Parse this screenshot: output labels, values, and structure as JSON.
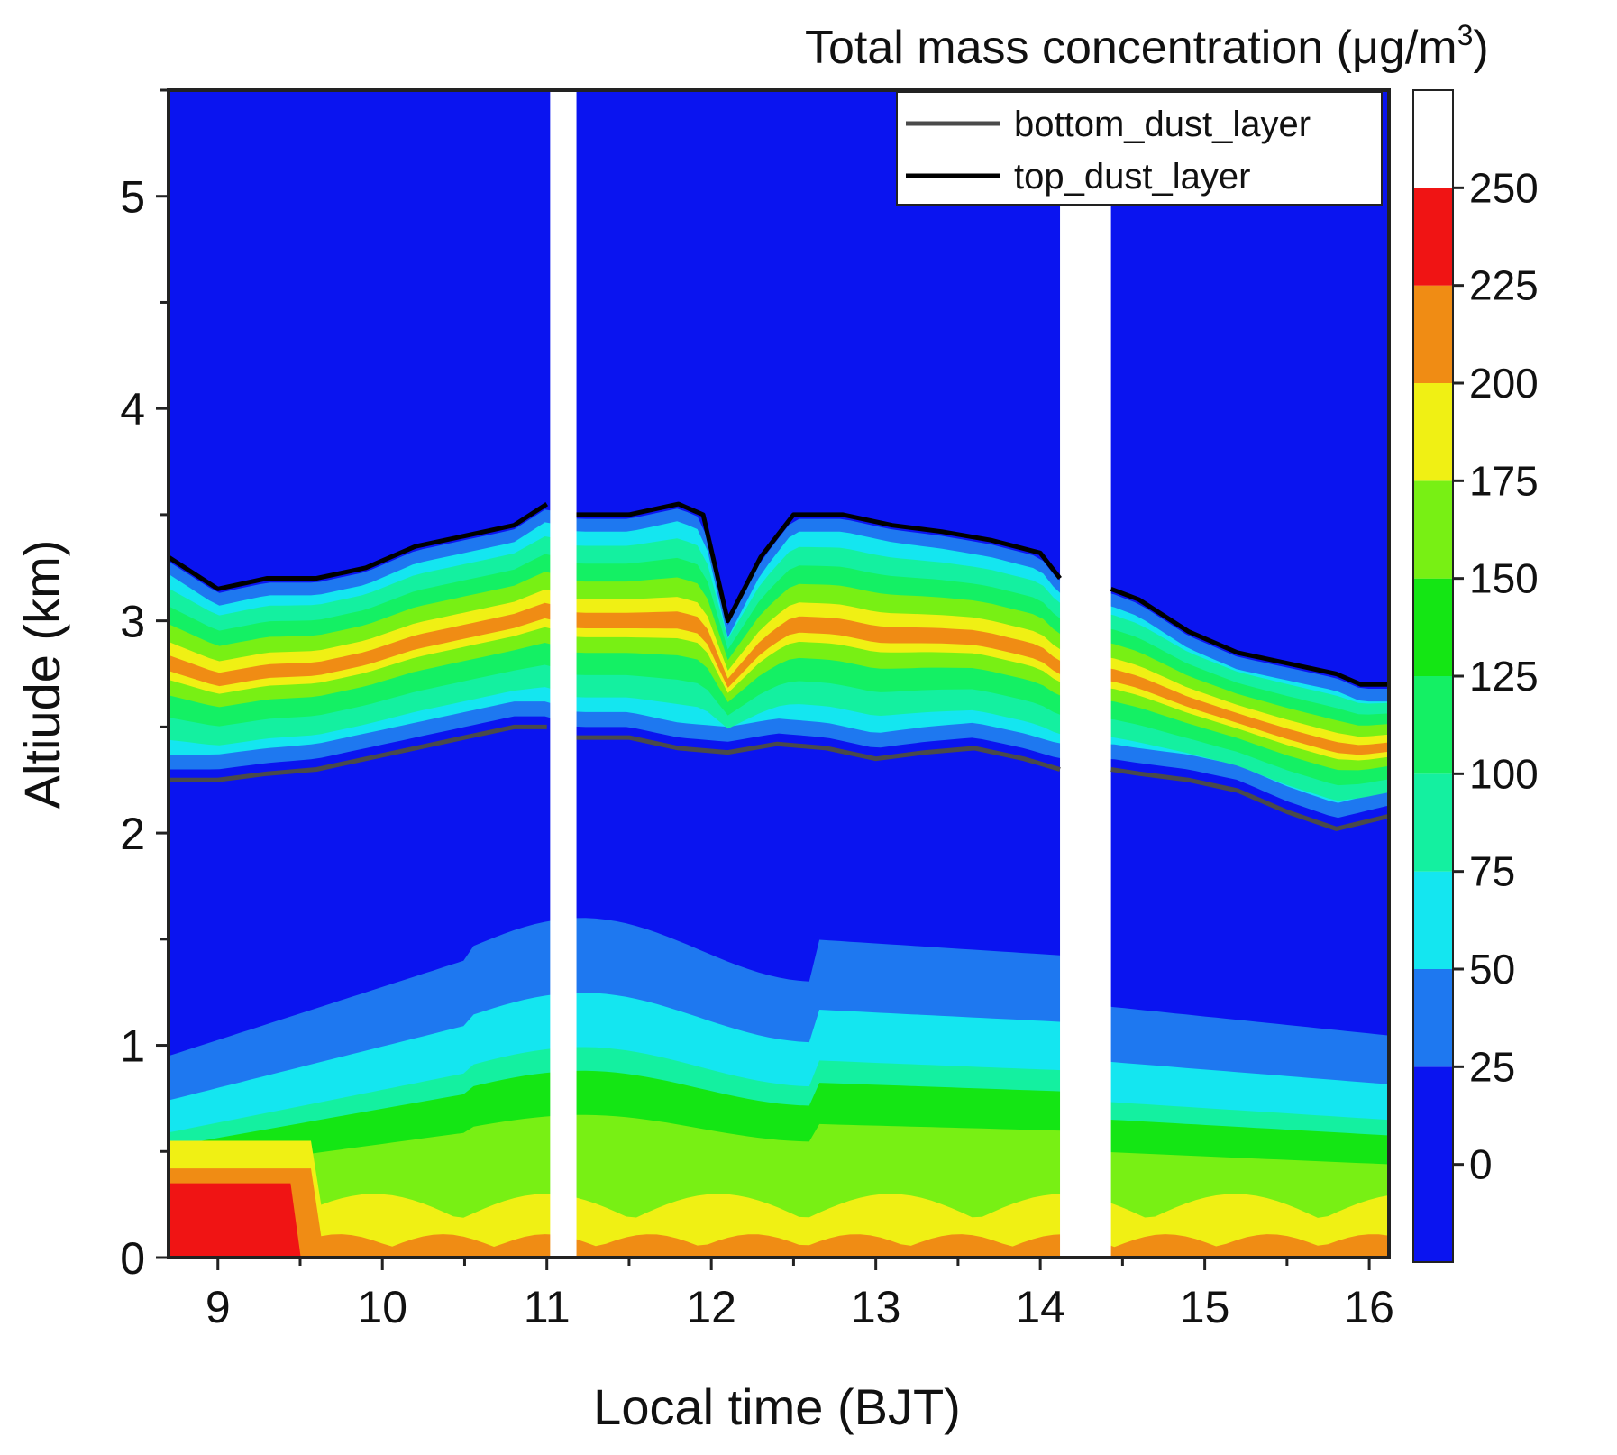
{
  "chart_data": {
    "type": "heatmap",
    "title": "Total mass concentration (μg/m",
    "title_superscript": "3",
    "title_close": ")",
    "xlabel": "Local time (BJT)",
    "ylabel": "Altiude (km)",
    "xlim": [
      8.7,
      16.12
    ],
    "ylim": [
      0,
      5.5
    ],
    "x_ticks": [
      9,
      10,
      11,
      12,
      13,
      14,
      15,
      16
    ],
    "x_tick_labels": [
      "9",
      "10",
      "11",
      "12",
      "13",
      "14",
      "15",
      "16"
    ],
    "y_ticks": [
      0,
      1,
      2,
      3,
      4,
      5
    ],
    "y_tick_labels": [
      "0",
      "1",
      "2",
      "3",
      "4",
      "5"
    ],
    "no_data_gaps": [
      [
        11.02,
        11.18
      ],
      [
        14.12,
        14.43
      ]
    ],
    "colorbar": {
      "levels": [
        0,
        25,
        50,
        75,
        100,
        125,
        150,
        175,
        200,
        225,
        250
      ],
      "labels": [
        "0",
        "25",
        "50",
        "75",
        "100",
        "125",
        "150",
        "175",
        "200",
        "225",
        "250"
      ],
      "colors": [
        "#0a14f0",
        "#1e78f0",
        "#14e6f0",
        "#14f0a0",
        "#14f064",
        "#14e614",
        "#78f014",
        "#f0f014",
        "#f08c14",
        "#f01414",
        "#ffffff"
      ]
    },
    "series": [
      {
        "name": "bottom_dust_layer",
        "color": "#4a4a4a",
        "x": [
          8.7,
          9.0,
          9.3,
          9.6,
          9.9,
          10.2,
          10.5,
          10.8,
          11.0,
          11.18,
          11.5,
          11.8,
          12.1,
          12.4,
          12.7,
          13.0,
          13.3,
          13.6,
          13.9,
          14.12,
          14.43,
          14.6,
          14.9,
          15.2,
          15.5,
          15.8,
          16.12
        ],
        "y": [
          2.25,
          2.25,
          2.28,
          2.3,
          2.35,
          2.4,
          2.45,
          2.5,
          2.5,
          2.45,
          2.45,
          2.4,
          2.38,
          2.42,
          2.4,
          2.35,
          2.38,
          2.4,
          2.35,
          2.3,
          2.3,
          2.28,
          2.25,
          2.2,
          2.1,
          2.02,
          2.08
        ]
      },
      {
        "name": "top_dust_layer",
        "color": "#000000",
        "x": [
          8.7,
          9.0,
          9.3,
          9.6,
          9.9,
          10.2,
          10.5,
          10.8,
          11.0,
          11.18,
          11.5,
          11.8,
          11.95,
          12.1,
          12.3,
          12.5,
          12.8,
          13.1,
          13.4,
          13.7,
          14.0,
          14.12,
          14.43,
          14.6,
          14.9,
          15.2,
          15.5,
          15.8,
          15.95,
          16.12
        ],
        "y": [
          3.3,
          3.15,
          3.2,
          3.2,
          3.25,
          3.35,
          3.4,
          3.45,
          3.55,
          3.5,
          3.5,
          3.55,
          3.5,
          3.0,
          3.3,
          3.5,
          3.5,
          3.45,
          3.42,
          3.38,
          3.32,
          3.2,
          3.15,
          3.1,
          2.95,
          2.85,
          2.8,
          2.75,
          2.7,
          2.7
        ]
      }
    ],
    "legend": {
      "position": "top-right",
      "entries": [
        "bottom_dust_layer",
        "top_dust_layer"
      ]
    }
  }
}
